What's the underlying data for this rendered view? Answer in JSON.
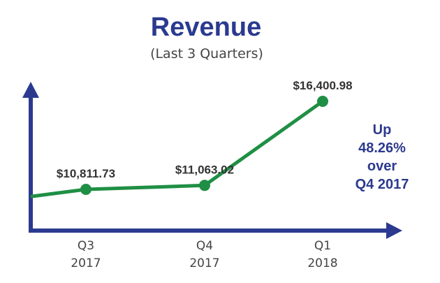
{
  "chart_data": {
    "type": "line",
    "title": "Revenue",
    "subtitle": "(Last 3 Quarters)",
    "categories": [
      [
        "Q3",
        "2017"
      ],
      [
        "Q4",
        "2017"
      ],
      [
        "Q1",
        "2018"
      ]
    ],
    "series": [
      {
        "values": [
          10811.73,
          11063.02,
          16400.98
        ],
        "labels": [
          "$10,811.73",
          "$11,063.02",
          "$16,400.98"
        ]
      }
    ],
    "annotation": [
      "Up",
      "48.26%",
      "over",
      "Q4 2017"
    ],
    "grid": false,
    "legend": "none",
    "colors": {
      "title": "#2b3a8f",
      "axis": "#2b3a8f",
      "line": "#1f8f45",
      "marker": "#1f8f45",
      "data_label": "#333333",
      "tick_label": "#444444",
      "annotation": "#2b3a8f"
    }
  }
}
